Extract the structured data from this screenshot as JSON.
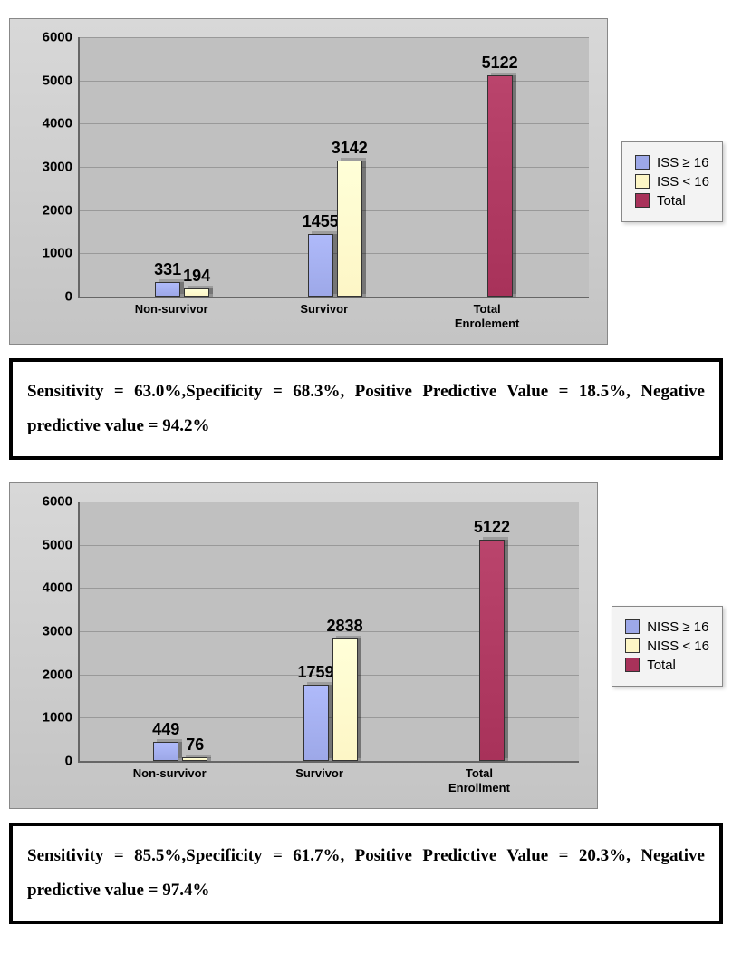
{
  "charts": [
    {
      "type": "bar",
      "y_max": 6000,
      "y_step": 1000,
      "categories": [
        "Non-survivor",
        "Survivor",
        "Total\nEnrolement"
      ],
      "category_positions_pct": [
        18,
        48,
        80
      ],
      "groups": [
        {
          "values": [
            331,
            194
          ],
          "x_offsets": [
            -18,
            14
          ]
        },
        {
          "values": [
            1455,
            3142
          ],
          "x_offsets": [
            -18,
            14
          ]
        },
        {
          "values": [
            5122
          ],
          "single_color": "#a8325a",
          "x_offsets": [
            0
          ]
        }
      ],
      "series_colors": [
        "#9da8e8",
        "#fdf6c6"
      ],
      "total_color": "#a8325a",
      "plot_bg": "#c0c0c0",
      "legend": [
        {
          "label": "ISS ≥ 16",
          "color": "#9da8e8"
        },
        {
          "label": "ISS < 16",
          "color": "#fdf6c6"
        },
        {
          "label": "Total",
          "color": "#a8325a"
        }
      ],
      "stats": "Sensitivity = 63.0%,Specificity = 68.3%, Positive Predictive Value = 18.5%, Negative predictive value = 94.2%"
    },
    {
      "type": "bar",
      "y_max": 6000,
      "y_step": 1000,
      "categories": [
        "Non-survivor",
        "Survivor",
        "Total\nEnrollment"
      ],
      "category_positions_pct": [
        18,
        48,
        80
      ],
      "groups": [
        {
          "values": [
            449,
            76
          ],
          "x_offsets": [
            -18,
            14
          ]
        },
        {
          "values": [
            1759,
            2838
          ],
          "x_offsets": [
            -18,
            14
          ]
        },
        {
          "values": [
            5122
          ],
          "single_color": "#a8325a",
          "x_offsets": [
            0
          ]
        }
      ],
      "series_colors": [
        "#9da8e8",
        "#fdf6c6"
      ],
      "total_color": "#a8325a",
      "plot_bg": "#c0c0c0",
      "legend": [
        {
          "label": "NISS ≥ 16",
          "color": "#9da8e8"
        },
        {
          "label": "NISS < 16",
          "color": "#fdf6c6"
        },
        {
          "label": "Total",
          "color": "#a8325a"
        }
      ],
      "stats": "Sensitivity = 85.5%,Specificity = 61.7%, Positive Predictive Value = 20.3%, Negative predictive value = 97.4%"
    }
  ]
}
